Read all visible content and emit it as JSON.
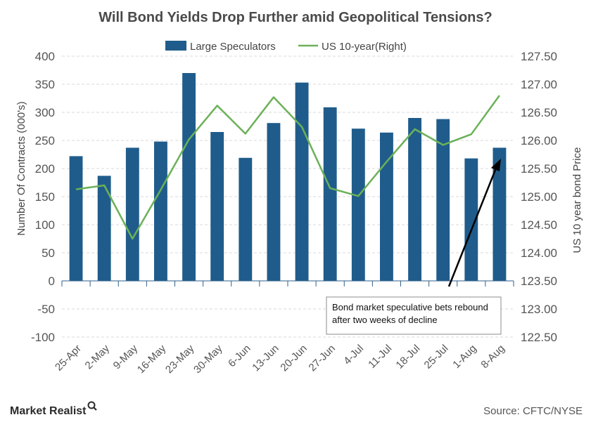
{
  "chart_data": {
    "type": "bar",
    "title": "Will Bond Yields Drop Further amid Geopolitical Tensions?",
    "categories": [
      "25-Apr",
      "2-May",
      "9-May",
      "16-May",
      "23-May",
      "30-May",
      "6-Jun",
      "13-Jun",
      "20-Jun",
      "27-Jun",
      "4-Jul",
      "11-Jul",
      "18-Jul",
      "25-Jul",
      "1-Aug",
      "8-Aug"
    ],
    "series": [
      {
        "name": "Large Speculators",
        "type": "bar",
        "axis": "left",
        "color": "#1f5c8b",
        "values": [
          222,
          187,
          237,
          248,
          370,
          265,
          219,
          281,
          353,
          309,
          271,
          264,
          290,
          288,
          218,
          237
        ]
      },
      {
        "name": "US 10-year(Right)",
        "type": "line",
        "axis": "right",
        "color": "#6bb158",
        "values": [
          125.13,
          125.2,
          124.25,
          125.12,
          126.02,
          126.62,
          126.12,
          126.77,
          126.24,
          125.15,
          125.01,
          125.62,
          126.2,
          125.92,
          126.11,
          126.8
        ]
      }
    ],
    "ylabel": "Number Of Contracts (000's)",
    "y2label": "US 10 year bond Price",
    "ylim": [
      -100,
      400
    ],
    "y2lim": [
      122.5,
      127.5
    ],
    "yticks": [
      "400",
      "350",
      "300",
      "250",
      "200",
      "150",
      "100",
      "50",
      "0",
      "-50",
      "-100"
    ],
    "y2ticks": [
      "127.50",
      "127.00",
      "126.50",
      "126.00",
      "125.50",
      "125.00",
      "124.50",
      "124.00",
      "123.50",
      "123.00",
      "122.50"
    ],
    "grid": true,
    "legend_position": "top",
    "annotation": {
      "line1": "Bond market speculative bets rebound",
      "line2": "after two weeks of decline"
    }
  },
  "footer": {
    "brand": "Market Realist",
    "source": "Source: CFTC/NYSE"
  }
}
